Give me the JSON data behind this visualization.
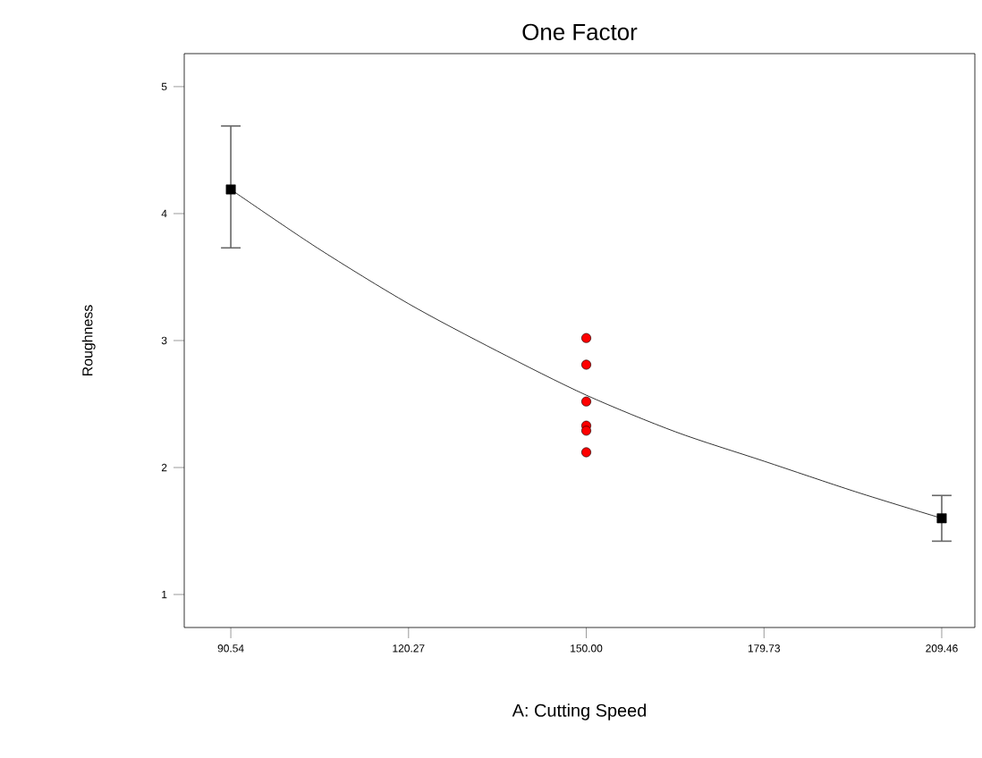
{
  "chart_data": {
    "type": "scatter",
    "title": "One Factor",
    "xlabel": "A: Cutting Speed",
    "ylabel": "Roughness",
    "xlim": [
      82.75,
      215
    ],
    "ylim": [
      0.74,
      5.26
    ],
    "xticks": [
      90.54,
      120.27,
      {
        "value": 150,
        "label": "150.00"
      },
      179.73,
      209.46
    ],
    "yticks": [
      1,
      2,
      3,
      4,
      5
    ],
    "series": [
      {
        "type": "line",
        "color": "#000000",
        "marker": "none",
        "line_style": "solid",
        "x": [
          90.54,
          105,
          120.27,
          135,
          150,
          165,
          179.73,
          195,
          209.46
        ],
        "values": [
          4.19,
          3.73,
          3.29,
          2.92,
          2.57,
          2.28,
          2.05,
          1.81,
          1.6
        ]
      },
      {
        "color": "#000000",
        "marker": "square",
        "x": [
          90.54,
          209.46
        ],
        "values": [
          4.19,
          1.6
        ],
        "errors": [
          [
            3.73,
            4.69
          ],
          [
            1.42,
            1.78
          ]
        ]
      },
      {
        "color": "#ff0000",
        "marker": "circle",
        "x": [
          150,
          150,
          150,
          150,
          150,
          150
        ],
        "values": [
          3.02,
          2.81,
          2.52,
          2.33,
          2.29,
          2.12
        ]
      }
    ]
  }
}
